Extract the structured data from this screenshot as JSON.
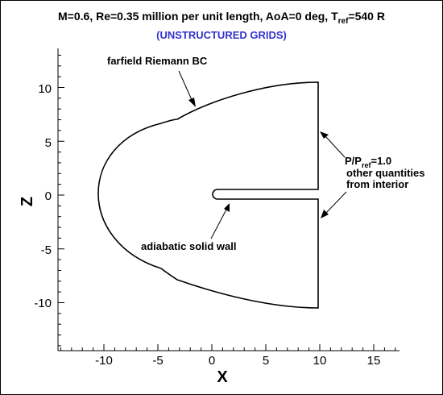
{
  "title": {
    "prefix": "M=0.6, Re=0.35 million per unit length, AoA=0 deg, T",
    "sub": "ref",
    "suffix": "=540 R"
  },
  "subtitle": "(UNSTRUCTURED GRIDS)",
  "colors": {
    "subtitle": "#3333cc",
    "line": "#000000"
  },
  "axes": {
    "xlabel": "X",
    "ylabel": "Z",
    "xlim": [
      -15,
      17
    ],
    "ylim": [
      -14.5,
      13.5
    ],
    "xticks": [
      "-10",
      "-5",
      "0",
      "5",
      "10",
      "15"
    ],
    "yticks": [
      "10",
      "5",
      "0",
      "-5",
      "-10"
    ]
  },
  "annotations": {
    "farfield": "farfield Riemann BC",
    "wall": "adiabatic solid wall",
    "outlet": {
      "line1_prefix": "P/P",
      "line1_sub": "ref",
      "line1_suffix": "=1.0",
      "line2": "other quantities",
      "line3": "from interior"
    }
  }
}
